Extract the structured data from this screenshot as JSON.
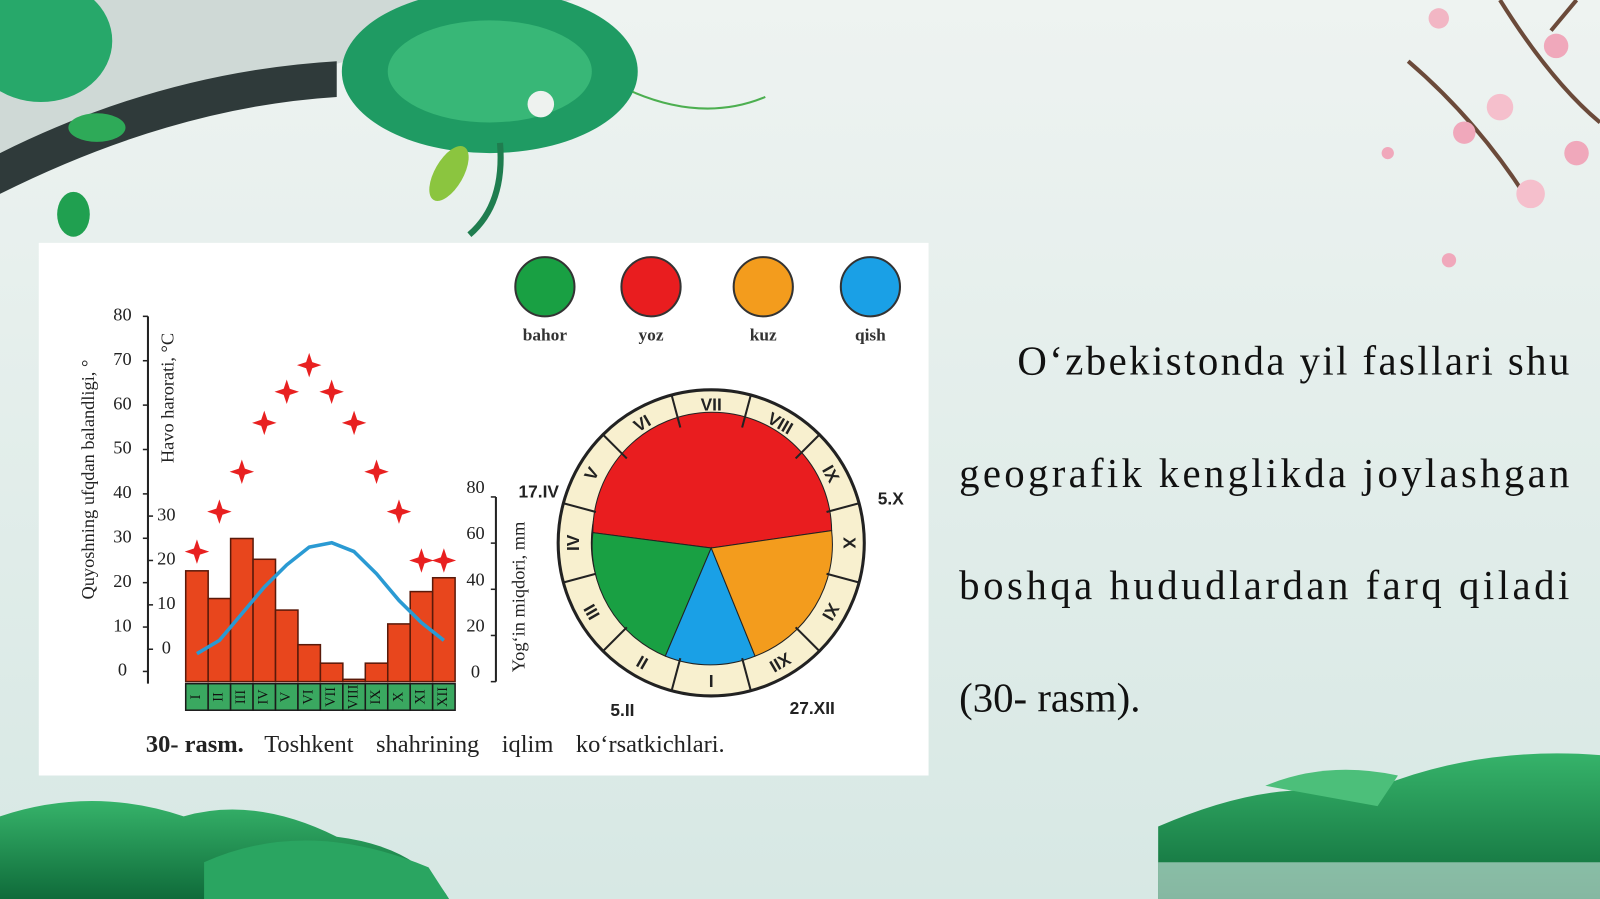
{
  "legend": [
    {
      "label": "bahor",
      "color": "#19a043"
    },
    {
      "label": "yoz",
      "color": "#e91d1f"
    },
    {
      "label": "kuz",
      "color": "#f39c1d"
    },
    {
      "label": "qish",
      "color": "#1aa0e6"
    }
  ],
  "climograph": {
    "months": [
      "I",
      "II",
      "III",
      "IV",
      "V",
      "VI",
      "VII",
      "VIII",
      "IX",
      "X",
      "XI",
      "XII"
    ],
    "sun_axis": {
      "label": "Quyoshning ufqdan balandligi, °",
      "ylim": [
        0,
        80
      ],
      "ticks": [
        0,
        10,
        20,
        30,
        40,
        50,
        60,
        70,
        80
      ]
    },
    "temperature_axis": {
      "label": "Havo harorati, °C",
      "ylim": [
        -5,
        75
      ],
      "ticks": [
        0,
        10,
        20,
        30
      ]
    },
    "precipitation_axis": {
      "label": "Yog‘in miqdori, mm",
      "ylim": [
        0,
        80
      ],
      "ticks": [
        0,
        20,
        40,
        60,
        80
      ]
    },
    "sun_altitude": {
      "color": "#e82020",
      "values": [
        27,
        36,
        45,
        56,
        63,
        69,
        63,
        56,
        45,
        36,
        25,
        25
      ]
    },
    "temperature": {
      "color": "#2a9ad3",
      "values": [
        -1,
        2,
        8,
        14,
        19,
        23,
        24,
        22,
        17,
        11,
        6,
        2
      ]
    },
    "precipitation": {
      "color": "#e8461d",
      "values": [
        48,
        36,
        62,
        53,
        31,
        16,
        8,
        1,
        8,
        25,
        39,
        45
      ]
    }
  },
  "season_wheel": {
    "months": [
      "I",
      "II",
      "III",
      "IV",
      "V",
      "VI",
      "VII",
      "VIII",
      "IX",
      "X",
      "XI",
      "XII"
    ],
    "dates": [
      "17.IV",
      "5.X",
      "5.II",
      "27.XII"
    ]
  },
  "caption": {
    "number": "30- rasm.",
    "text": "Toshkent shahrining iqlim ko‘rsatkichlari."
  },
  "paragraph": {
    "lines": [
      "O‘zbekistonda yil fasllari shu",
      "geografik kenglikda joylashgan",
      "boshqa hududlardan farq qiladi",
      "(30- rasm)."
    ]
  }
}
